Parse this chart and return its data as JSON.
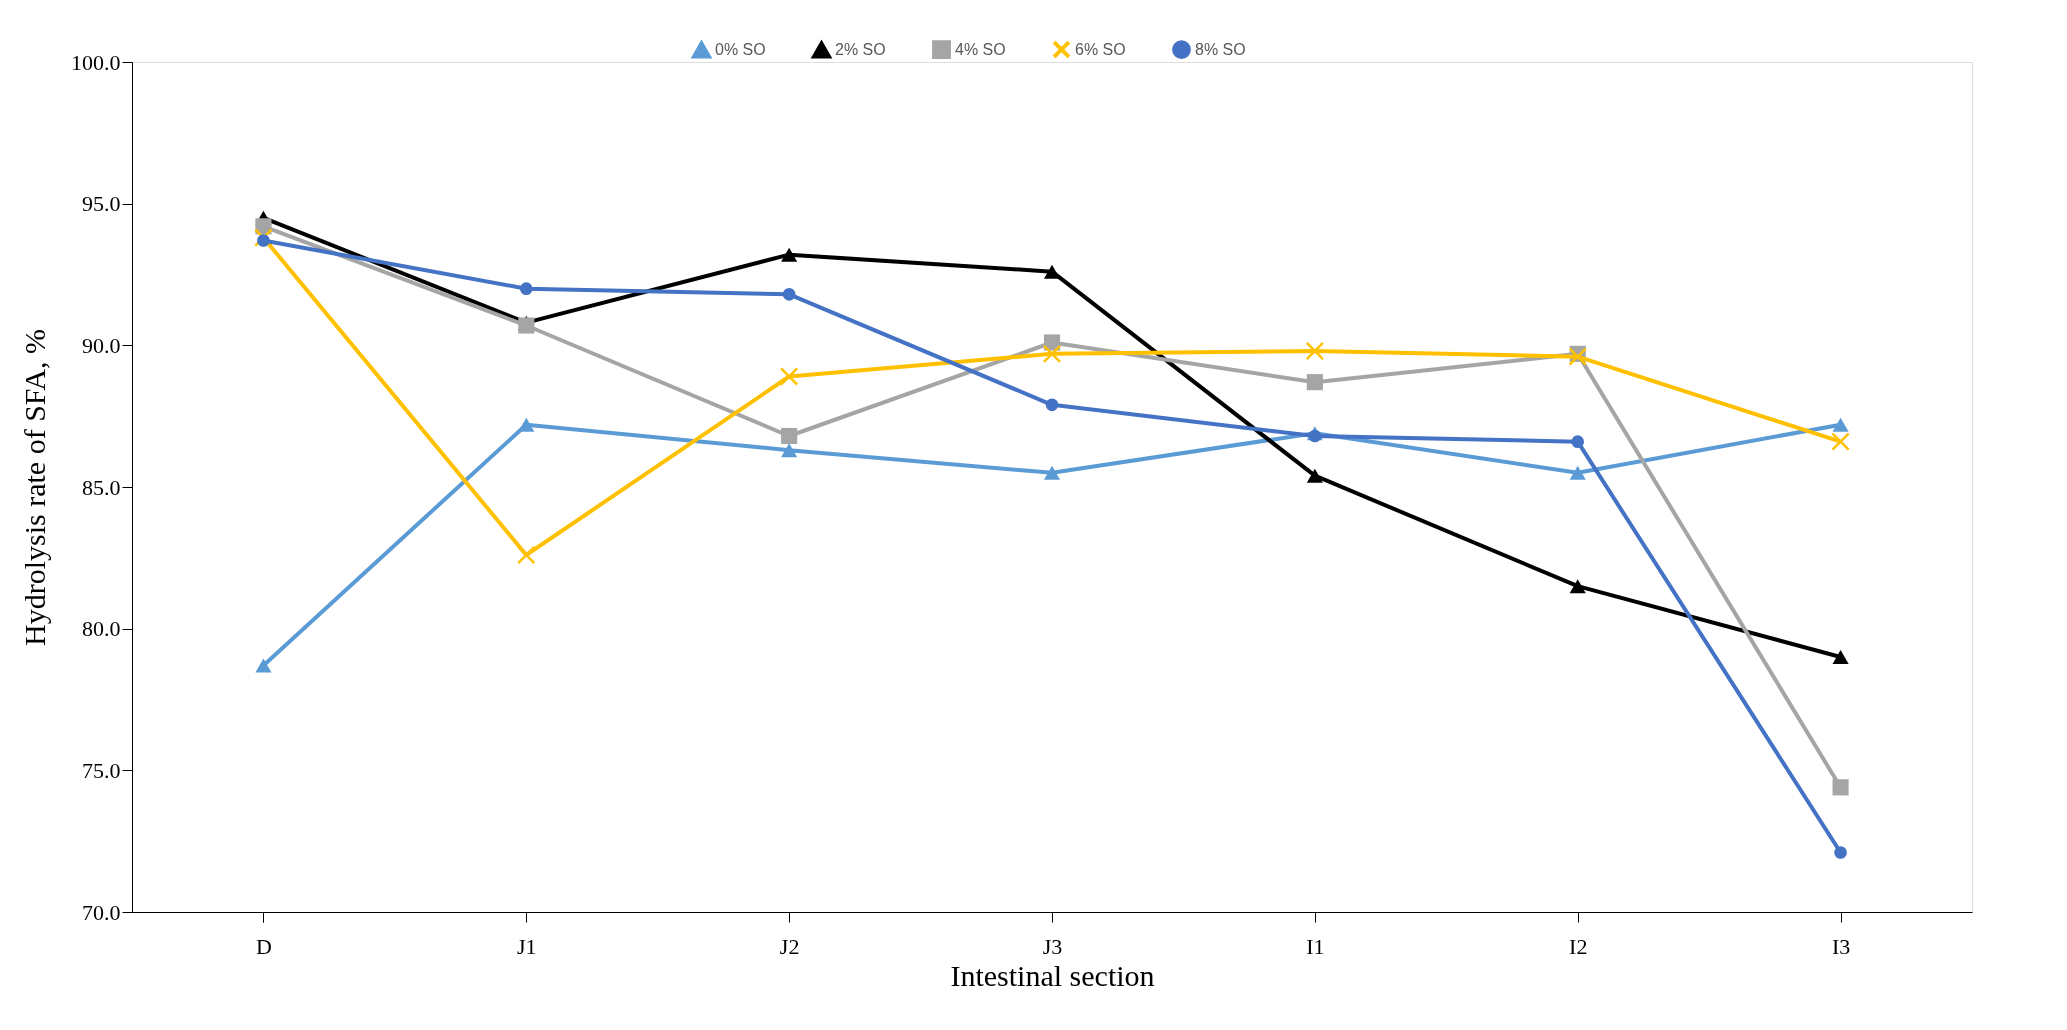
{
  "chart_data": {
    "type": "line",
    "xlabel": "Intestinal section",
    "ylabel": "Hydrolysis rate of SFA, %",
    "categories": [
      "D",
      "J1",
      "J2",
      "J3",
      "I1",
      "I2",
      "I3"
    ],
    "ylim": [
      70,
      100
    ],
    "yticks": [
      {
        "value": 70,
        "label": "70.0"
      },
      {
        "value": 75,
        "label": "75.0"
      },
      {
        "value": 80,
        "label": "80.0"
      },
      {
        "value": 85,
        "label": "85.0"
      },
      {
        "value": 90,
        "label": "90.0"
      },
      {
        "value": 95,
        "label": "95.0"
      },
      {
        "value": 100,
        "label": "100.0"
      }
    ],
    "grid": false,
    "legend": "top",
    "line_style": "solid",
    "series": [
      {
        "name": "0% SO",
        "color": "#5b9bd5",
        "marker": "triangle",
        "values": [
          78.7,
          87.2,
          86.3,
          85.5,
          86.9,
          85.5,
          87.2
        ]
      },
      {
        "name": "2% SO",
        "color": "#000000",
        "marker": "triangle",
        "values": [
          94.5,
          90.8,
          93.2,
          92.6,
          85.4,
          81.5,
          79.0
        ]
      },
      {
        "name": "4% SO",
        "color": "#a5a5a5",
        "marker": "square",
        "values": [
          94.2,
          90.7,
          86.8,
          90.1,
          88.7,
          89.7,
          74.4
        ]
      },
      {
        "name": "6% SO",
        "color": "#ffc000",
        "marker": "cross",
        "values": [
          93.8,
          82.6,
          88.9,
          89.7,
          89.8,
          89.6,
          86.6
        ]
      },
      {
        "name": "8% SO",
        "color": "#4472c4",
        "marker": "circle",
        "values": [
          93.7,
          92.0,
          91.8,
          87.9,
          86.8,
          86.6,
          72.1
        ]
      }
    ]
  }
}
